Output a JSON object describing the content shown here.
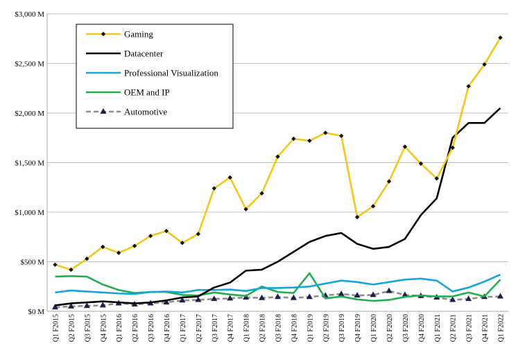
{
  "chart_data": {
    "type": "line",
    "title": "",
    "xlabel": "",
    "ylabel": "",
    "ylim": [
      0,
      3000
    ],
    "y_ticks": [
      0,
      500,
      1000,
      1500,
      2000,
      2500,
      3000
    ],
    "y_tick_labels": [
      "$0 M",
      "$500 M",
      "$1,000 M",
      "$1,500 M",
      "$2,000 M",
      "$2,500 M",
      "$3,000 M"
    ],
    "grid": "horizontal",
    "legend_position": "top-left",
    "categories": [
      "Q1 F2015",
      "Q2 F2015",
      "Q3 F2015",
      "Q4 F2015",
      "Q1 F2016",
      "Q2 F2016",
      "Q3 F2016",
      "Q4 F2016",
      "Q1 F2017",
      "Q2 F2017",
      "Q3 F2017",
      "Q4 F2017",
      "Q1 F2018",
      "Q2 F2018",
      "Q3 F2018",
      "Q4 F2018",
      "Q1 F2019",
      "Q2 F2019",
      "Q3 F2019",
      "Q4 F2019",
      "Q1 F2020",
      "Q2 F2020",
      "Q3 F2020",
      "Q4 F2020",
      "Q1 F2021",
      "Q2 F2021",
      "Q3 F2021",
      "Q4 F2021",
      "Q1 F2022"
    ],
    "series": [
      {
        "name": "Gaming",
        "color": "#F5C518",
        "marker": "diamond",
        "dashed": false,
        "values": [
          470,
          420,
          530,
          650,
          590,
          660,
          760,
          810,
          690,
          780,
          1240,
          1350,
          1030,
          1190,
          1560,
          1740,
          1720,
          1800,
          1770,
          950,
          1060,
          1310,
          1660,
          1490,
          1340,
          1650,
          2270,
          2490,
          2760
        ]
      },
      {
        "name": "Datacenter",
        "color": "#000000",
        "marker": "none",
        "dashed": false,
        "values": [
          60,
          80,
          90,
          100,
          90,
          80,
          90,
          110,
          140,
          150,
          240,
          290,
          410,
          420,
          500,
          600,
          700,
          760,
          790,
          680,
          630,
          650,
          730,
          970,
          1140,
          1750,
          1900,
          1900,
          2050
        ]
      },
      {
        "name": "Professional Visualization",
        "color": "#14A3DC",
        "marker": "none",
        "dashed": false,
        "values": [
          190,
          210,
          200,
          190,
          180,
          175,
          195,
          200,
          190,
          215,
          215,
          220,
          205,
          235,
          235,
          240,
          250,
          280,
          310,
          295,
          270,
          295,
          320,
          330,
          310,
          200,
          240,
          300,
          370
        ]
      },
      {
        "name": "OEM and IP",
        "color": "#1FAF4E",
        "marker": "none",
        "dashed": false,
        "values": [
          350,
          355,
          350,
          270,
          215,
          185,
          195,
          195,
          165,
          160,
          190,
          170,
          155,
          250,
          195,
          185,
          385,
          130,
          150,
          120,
          105,
          115,
          145,
          160,
          150,
          150,
          190,
          150,
          320
        ]
      },
      {
        "name": "Automotive",
        "color": "#8C8C8C",
        "marker": "triangle",
        "dashed": true,
        "values": [
          40,
          50,
          55,
          60,
          80,
          70,
          80,
          90,
          110,
          115,
          125,
          130,
          140,
          135,
          145,
          135,
          145,
          160,
          175,
          160,
          165,
          205,
          165,
          155,
          140,
          115,
          125,
          145,
          150
        ]
      }
    ]
  }
}
